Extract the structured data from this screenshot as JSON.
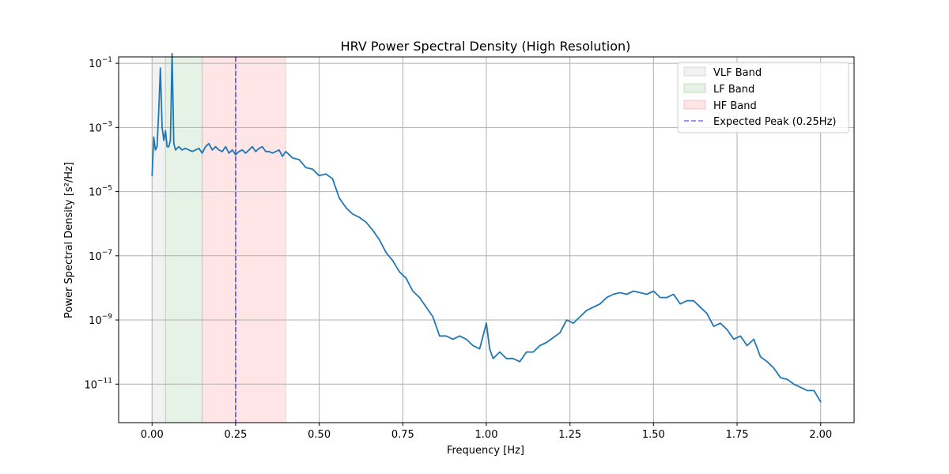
{
  "chart_data": {
    "type": "line",
    "title": "HRV Power Spectral Density (High Resolution)",
    "xlabel": "Frequency [Hz]",
    "ylabel": "Power Spectral Density [s²/Hz]",
    "xlim": [
      -0.1,
      2.1
    ],
    "ylim_log10": [
      -12.2,
      -0.8
    ],
    "yscale": "log",
    "grid": true,
    "legend_position": "top-right",
    "x_ticks": [
      {
        "value": 0.0,
        "label": "0.00"
      },
      {
        "value": 0.25,
        "label": "0.25"
      },
      {
        "value": 0.5,
        "label": "0.50"
      },
      {
        "value": 0.75,
        "label": "0.75"
      },
      {
        "value": 1.0,
        "label": "1.00"
      },
      {
        "value": 1.25,
        "label": "1.25"
      },
      {
        "value": 1.5,
        "label": "1.50"
      },
      {
        "value": 1.75,
        "label": "1.75"
      },
      {
        "value": 2.0,
        "label": "2.00"
      }
    ],
    "y_ticks": [
      {
        "exp": -1,
        "base": "10",
        "sup": "−1"
      },
      {
        "exp": -3,
        "base": "10",
        "sup": "−3"
      },
      {
        "exp": -5,
        "base": "10",
        "sup": "−5"
      },
      {
        "exp": -7,
        "base": "10",
        "sup": "−7"
      },
      {
        "exp": -9,
        "base": "10",
        "sup": "−9"
      },
      {
        "exp": -11,
        "base": "10",
        "sup": "−11"
      }
    ],
    "bands": [
      {
        "name": "VLF Band",
        "from": 0.0,
        "to": 0.04,
        "color": "#808080",
        "opacity": 0.1
      },
      {
        "name": "LF Band",
        "from": 0.04,
        "to": 0.15,
        "color": "#008000",
        "opacity": 0.1
      },
      {
        "name": "HF Band",
        "from": 0.15,
        "to": 0.4,
        "color": "#ff0000",
        "opacity": 0.1
      }
    ],
    "reference_line": {
      "name": "Expected Peak (0.25Hz)",
      "x": 0.25,
      "color": "#0000ff",
      "style": "dashed"
    },
    "series": [
      {
        "color": "#1f77b4",
        "x": [
          0.0,
          0.005,
          0.01,
          0.015,
          0.02,
          0.025,
          0.03,
          0.035,
          0.04,
          0.045,
          0.05,
          0.055,
          0.06,
          0.065,
          0.07,
          0.08,
          0.09,
          0.1,
          0.11,
          0.12,
          0.13,
          0.14,
          0.15,
          0.16,
          0.17,
          0.18,
          0.19,
          0.2,
          0.21,
          0.22,
          0.23,
          0.24,
          0.25,
          0.26,
          0.27,
          0.28,
          0.29,
          0.3,
          0.31,
          0.32,
          0.33,
          0.34,
          0.35,
          0.36,
          0.37,
          0.38,
          0.39,
          0.4,
          0.42,
          0.44,
          0.46,
          0.48,
          0.5,
          0.52,
          0.54,
          0.56,
          0.58,
          0.6,
          0.62,
          0.64,
          0.66,
          0.68,
          0.7,
          0.72,
          0.74,
          0.76,
          0.78,
          0.8,
          0.82,
          0.84,
          0.86,
          0.88,
          0.9,
          0.92,
          0.94,
          0.96,
          0.98,
          1.0,
          1.01,
          1.02,
          1.04,
          1.06,
          1.08,
          1.1,
          1.12,
          1.14,
          1.16,
          1.18,
          1.2,
          1.22,
          1.24,
          1.26,
          1.28,
          1.3,
          1.32,
          1.34,
          1.36,
          1.38,
          1.4,
          1.42,
          1.44,
          1.46,
          1.48,
          1.5,
          1.52,
          1.54,
          1.56,
          1.58,
          1.6,
          1.62,
          1.64,
          1.66,
          1.68,
          1.7,
          1.72,
          1.74,
          1.76,
          1.78,
          1.8,
          1.82,
          1.84,
          1.86,
          1.88,
          1.9,
          1.92,
          1.94,
          1.96,
          1.98,
          2.0
        ],
        "log10_y": [
          -4.5,
          -3.3,
          -3.7,
          -3.6,
          -2.5,
          -1.15,
          -3.0,
          -3.4,
          -3.1,
          -3.6,
          -3.6,
          -3.4,
          -0.7,
          -3.5,
          -3.7,
          -3.6,
          -3.7,
          -3.65,
          -3.7,
          -3.75,
          -3.7,
          -3.65,
          -3.8,
          -3.6,
          -3.5,
          -3.7,
          -3.6,
          -3.7,
          -3.75,
          -3.6,
          -3.8,
          -3.7,
          -3.85,
          -3.75,
          -3.7,
          -3.8,
          -3.7,
          -3.6,
          -3.75,
          -3.65,
          -3.6,
          -3.75,
          -3.75,
          -3.8,
          -3.75,
          -3.7,
          -3.9,
          -3.75,
          -3.95,
          -4.0,
          -4.25,
          -4.3,
          -4.5,
          -4.45,
          -4.6,
          -5.2,
          -5.5,
          -5.7,
          -5.8,
          -5.95,
          -6.2,
          -6.5,
          -6.9,
          -7.15,
          -7.5,
          -7.7,
          -8.1,
          -8.3,
          -8.6,
          -8.9,
          -9.5,
          -9.5,
          -9.6,
          -9.5,
          -9.6,
          -9.8,
          -9.9,
          -9.1,
          -9.9,
          -10.2,
          -10.0,
          -10.2,
          -10.2,
          -10.3,
          -10.0,
          -10.0,
          -9.8,
          -9.7,
          -9.55,
          -9.4,
          -9.0,
          -9.1,
          -8.9,
          -8.7,
          -8.6,
          -8.5,
          -8.3,
          -8.2,
          -8.15,
          -8.2,
          -8.1,
          -8.15,
          -8.2,
          -8.1,
          -8.3,
          -8.3,
          -8.2,
          -8.5,
          -8.4,
          -8.4,
          -8.6,
          -8.8,
          -9.2,
          -9.1,
          -9.3,
          -9.6,
          -9.5,
          -9.8,
          -9.6,
          -10.15,
          -10.3,
          -10.5,
          -10.8,
          -10.85,
          -11.0,
          -11.1,
          -11.2,
          -11.2,
          -11.55
        ]
      }
    ]
  }
}
